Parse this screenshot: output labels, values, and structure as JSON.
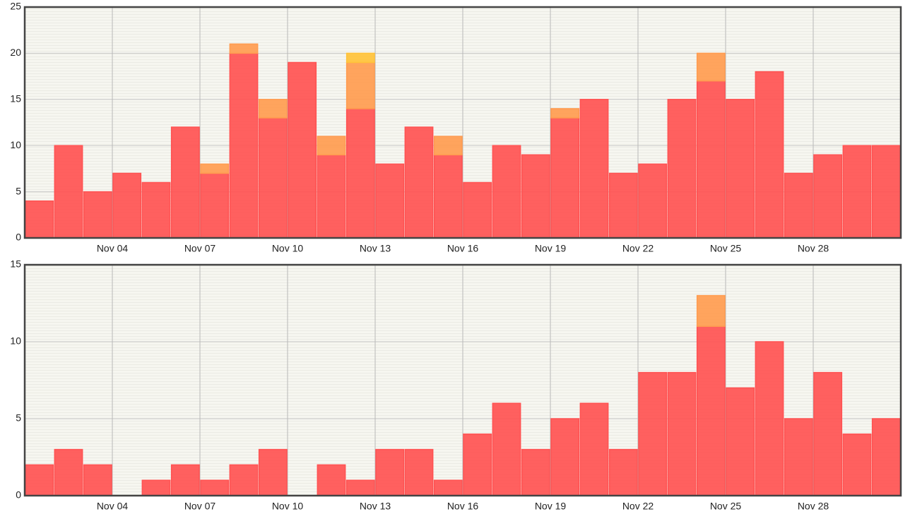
{
  "chart_data": [
    {
      "type": "bar",
      "stacked": true,
      "grid": true,
      "categories": [
        null,
        null,
        null,
        "Nov 04",
        null,
        null,
        "Nov 07",
        null,
        null,
        "Nov 10",
        null,
        null,
        "Nov 13",
        null,
        null,
        "Nov 16",
        null,
        null,
        "Nov 19",
        null,
        null,
        "Nov 22",
        null,
        null,
        "Nov 25",
        null,
        null,
        "Nov 28",
        null,
        null
      ],
      "ylim": [
        0,
        25
      ],
      "yticks": [
        0,
        5,
        10,
        15,
        20,
        25
      ],
      "series": [
        {
          "color": "#ff5252",
          "values": [
            4,
            10,
            5,
            7,
            6,
            12,
            7,
            20,
            13,
            19,
            9,
            14,
            8,
            12,
            9,
            6,
            10,
            9,
            13,
            15,
            7,
            8,
            15,
            17,
            15,
            18,
            7,
            9,
            10,
            10
          ]
        },
        {
          "color": "#ff9c50",
          "values": [
            0,
            0,
            0,
            0,
            0,
            0,
            1,
            1,
            2,
            0,
            2,
            5,
            0,
            0,
            2,
            0,
            0,
            0,
            1,
            0,
            0,
            0,
            0,
            3,
            0,
            0,
            0,
            0,
            0,
            0
          ]
        },
        {
          "color": "#ffc23a",
          "values": [
            0,
            0,
            0,
            0,
            0,
            0,
            0,
            0,
            0,
            0,
            0,
            1,
            0,
            0,
            0,
            0,
            0,
            0,
            0,
            0,
            0,
            0,
            0,
            0,
            0,
            0,
            0,
            0,
            0,
            0
          ]
        }
      ]
    },
    {
      "type": "bar",
      "stacked": true,
      "grid": true,
      "categories": [
        null,
        null,
        null,
        "Nov 04",
        null,
        null,
        "Nov 07",
        null,
        null,
        "Nov 10",
        null,
        null,
        "Nov 13",
        null,
        null,
        "Nov 16",
        null,
        null,
        "Nov 19",
        null,
        null,
        "Nov 22",
        null,
        null,
        "Nov 25",
        null,
        null,
        "Nov 28",
        null,
        null
      ],
      "ylim": [
        0,
        15
      ],
      "yticks": [
        0,
        5,
        10,
        15
      ],
      "series": [
        {
          "color": "#ff5252",
          "values": [
            2,
            3,
            2,
            0,
            1,
            2,
            1,
            2,
            3,
            0,
            2,
            1,
            3,
            3,
            1,
            4,
            6,
            3,
            5,
            6,
            3,
            8,
            8,
            11,
            7,
            10,
            5,
            8,
            4,
            5
          ]
        },
        {
          "color": "#ff9c50",
          "values": [
            0,
            0,
            0,
            0,
            0,
            0,
            0,
            0,
            0,
            0,
            0,
            0,
            0,
            0,
            0,
            0,
            0,
            0,
            0,
            0,
            0,
            0,
            0,
            2,
            0,
            0,
            0,
            0,
            0,
            0
          ]
        }
      ]
    }
  ]
}
